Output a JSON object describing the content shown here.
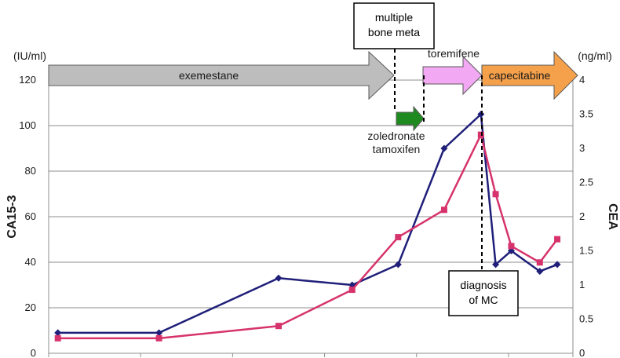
{
  "chart_data": {
    "type": "line",
    "left_unit": "(IU/ml)",
    "right_unit": "(ng/ml)",
    "ylabel": "CA15-3",
    "y2label": "CEA",
    "ylim": [
      0,
      120
    ],
    "y2lim": [
      0,
      4
    ],
    "y_ticks": [
      "0",
      "20",
      "40",
      "60",
      "80",
      "100",
      "120"
    ],
    "y2_ticks": [
      "0",
      "0.5",
      "1",
      "1.5",
      "2",
      "2.5",
      "3",
      "3.5",
      "4"
    ],
    "grid": true,
    "series": [
      {
        "name": "CA15-3",
        "axis": "left",
        "color": "#1f1f7a",
        "marker": "diamond",
        "x": [
          1,
          12,
          25,
          33,
          38,
          43,
          47,
          48.6,
          50.3,
          53.4,
          55.3
        ],
        "values": [
          9,
          9,
          33,
          30,
          39,
          90,
          105,
          39,
          45,
          36,
          39
        ]
      },
      {
        "name": "CEA",
        "axis": "right",
        "color": "#d6336c",
        "marker": "square",
        "x": [
          1,
          12,
          25,
          33,
          38,
          43,
          47,
          48.6,
          50.3,
          53.4,
          55.3
        ],
        "values": [
          0.22,
          0.22,
          0.4,
          0.93,
          1.7,
          2.1,
          3.2,
          2.33,
          1.57,
          1.33,
          1.67
        ]
      }
    ],
    "treatments": [
      {
        "label": "exemestane",
        "color": "#bdbdbd",
        "label_color": "#1a1a1a"
      },
      {
        "label": "zoledronate\ntamoxifen",
        "color": "#1f8a1f",
        "label_color": "#1a6e1a"
      },
      {
        "label": "toremifene",
        "color": "#f2a8f2",
        "label_color": "#a020a0"
      },
      {
        "label": "capecitabine",
        "color": "#f5a04a",
        "label_color": "#1a1a1a"
      }
    ],
    "annotations": [
      {
        "text": "multiple\nbone meta"
      },
      {
        "text": "diagnosis\nof MC"
      }
    ]
  }
}
